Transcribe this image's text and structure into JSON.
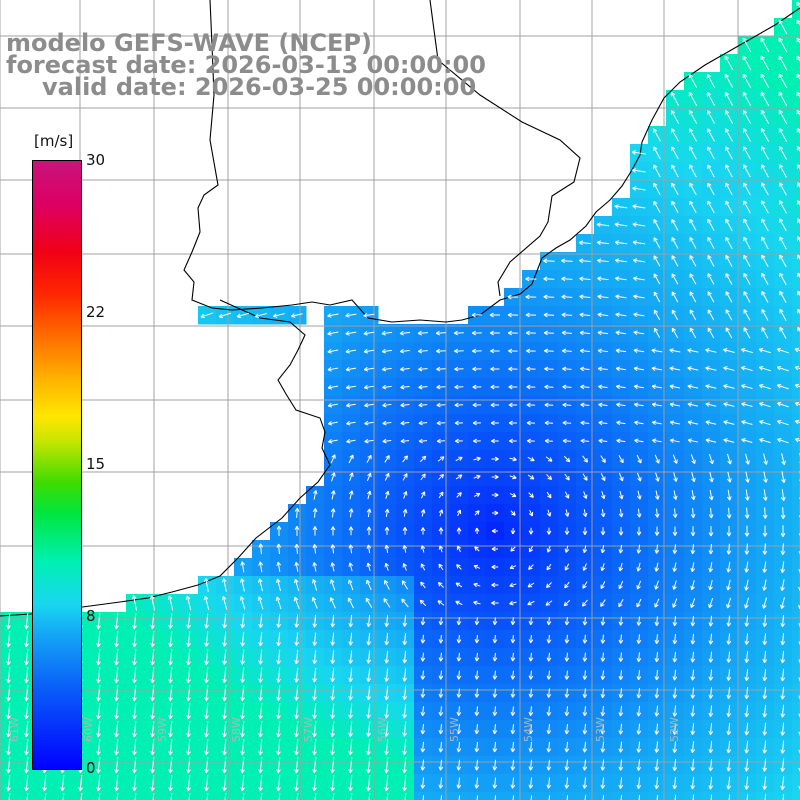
{
  "title": {
    "line1": "modelo GEFS-WAVE (NCEP)",
    "line2": "forecast date: 2026-03-13 00:00:00",
    "line3": "valid date: 2026-03-25 00:00:00"
  },
  "colorbar": {
    "unit": "[m/s]",
    "ticks": [
      "30",
      "22",
      "15",
      "8",
      "0"
    ],
    "range": [
      0,
      30
    ],
    "stops": [
      "#0000ff",
      "#0a64f8",
      "#14a5f5",
      "#19d6f0",
      "#00f0b4",
      "#00e640",
      "#3cdc00",
      "#c8e600",
      "#ffe600",
      "#ffb400",
      "#ff7800",
      "#ff2800",
      "#f00014",
      "#dc0064",
      "#c8147a"
    ]
  },
  "longitude_labels": [
    "61W",
    "60W",
    "59W",
    "58W",
    "57W",
    "56W",
    "55W",
    "54W",
    "53W",
    "52W"
  ],
  "field": {
    "variable": "wind speed",
    "min_value_region": "offshore southeast",
    "max_value_region": "southwest coastal"
  },
  "colors": {
    "land": "#ffffff",
    "gridlines": "#a0a0a0",
    "coastline": "#000000",
    "arrows": "#ffffff",
    "title_text": "#8c8c8c"
  }
}
